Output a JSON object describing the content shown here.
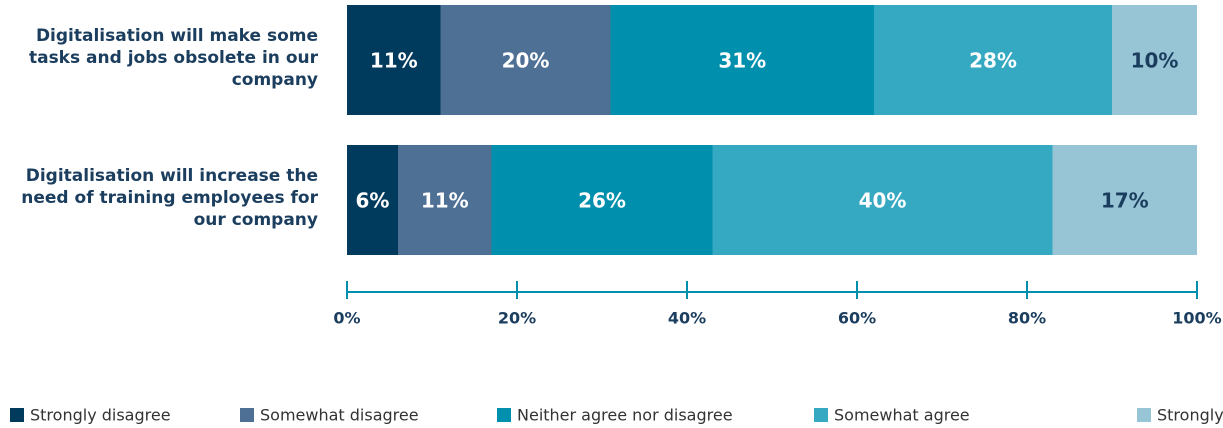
{
  "chart_data": {
    "type": "stacked_barh",
    "categories": [
      "Digitalisation will make some tasks and jobs obsolete in our company",
      "Digitalisation will increase the need of training employees for our company"
    ],
    "series": [
      {
        "name": "Strongly disagree",
        "color": "#003a5d",
        "values": [
          11,
          6
        ],
        "value_labels": [
          "11%",
          "6%"
        ]
      },
      {
        "name": "Somewhat disagree",
        "color": "#4e7094",
        "values": [
          20,
          11
        ],
        "value_labels": [
          "20%",
          "11%"
        ]
      },
      {
        "name": "Neither agree nor disagree",
        "color": "#008fad",
        "values": [
          31,
          26
        ],
        "value_labels": [
          "31%",
          "26%"
        ]
      },
      {
        "name": "Somewhat agree",
        "color": "#35a8c2",
        "values": [
          28,
          40
        ],
        "value_labels": [
          "28%",
          "40%"
        ]
      },
      {
        "name": "Strongly agree",
        "color": "#97c5d6",
        "values": [
          10,
          17
        ],
        "value_labels": [
          "10%",
          "17%"
        ]
      }
    ],
    "xlim": [
      0,
      100
    ],
    "xticks": [
      {
        "value": 0,
        "label": "0%"
      },
      {
        "value": 20,
        "label": "20%"
      },
      {
        "value": 40,
        "label": "40%"
      },
      {
        "value": 60,
        "label": "60%"
      },
      {
        "value": 80,
        "label": "80%"
      },
      {
        "value": 100,
        "label": "100%"
      }
    ],
    "legend": "bottom"
  }
}
